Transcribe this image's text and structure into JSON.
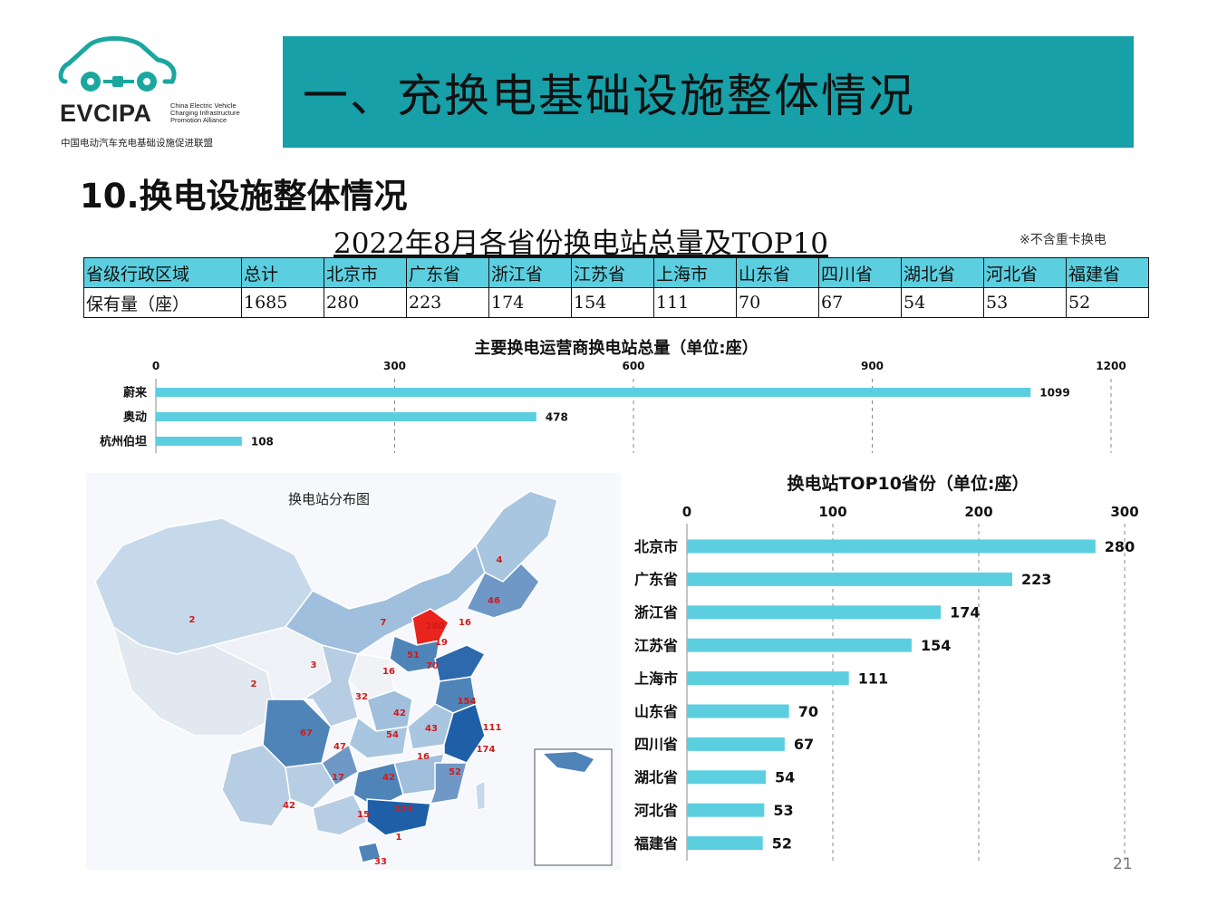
{
  "logo": {
    "name": "EVCIPA",
    "en_lines": [
      "China Electric Vehicle",
      "Charging Infrastructure",
      "Promotion Alliance"
    ],
    "cn": "中国电动汽车充电基础设施促进联盟"
  },
  "banner": {
    "title": "一、充换电基础设施整体情况"
  },
  "section_title": "10.换电设施整体情况",
  "table": {
    "title": "2022年8月各省份换电站总量及TOP10",
    "note": "※不含重卡换电",
    "header": [
      "省级行政区域",
      "总计",
      "北京市",
      "广东省",
      "浙江省",
      "江苏省",
      "上海市",
      "山东省",
      "四川省",
      "湖北省",
      "河北省",
      "福建省"
    ],
    "row": [
      "保有量（座）",
      "1685",
      "280",
      "223",
      "174",
      "154",
      "111",
      "70",
      "67",
      "54",
      "53",
      "52"
    ]
  },
  "colors": {
    "accent": "#17a0a8",
    "bar": "#5bcfe0",
    "table_header": "#5bcfe0",
    "map_dark": "#1e5fa8",
    "map_mid": "#4f84b8",
    "map_light": "#b8d0e4",
    "map_hot": "#e8241c"
  },
  "map": {
    "title": "换电站分布图",
    "labels": [
      "2",
      "4",
      "46",
      "7",
      "16",
      "280",
      "19",
      "3",
      "51",
      "70",
      "2",
      "32",
      "16",
      "154",
      "42",
      "111",
      "67",
      "47",
      "54",
      "43",
      "174",
      "16",
      "52",
      "17",
      "42",
      "42",
      "15",
      "223",
      "1",
      "33"
    ]
  },
  "chart_data": [
    {
      "type": "bar",
      "orientation": "horizontal",
      "title": "主要换电运营商换电站总量（单位:座）",
      "categories": [
        "蔚来",
        "奥动",
        "杭州伯坦"
      ],
      "values": [
        1099,
        478,
        108
      ],
      "xlim": [
        0,
        1200
      ],
      "ticks": [
        0,
        300,
        600,
        900,
        1200
      ],
      "grid": "dashed vertical",
      "legend": "none"
    },
    {
      "type": "bar",
      "orientation": "horizontal",
      "title": "换电站TOP10省份（单位:座）",
      "categories": [
        "北京市",
        "广东省",
        "浙江省",
        "江苏省",
        "上海市",
        "山东省",
        "四川省",
        "湖北省",
        "河北省",
        "福建省"
      ],
      "values": [
        280,
        223,
        174,
        154,
        111,
        70,
        67,
        54,
        53,
        52
      ],
      "xlim": [
        0,
        300
      ],
      "ticks": [
        0,
        100,
        200,
        300
      ],
      "grid": "dashed vertical",
      "legend": "none"
    }
  ],
  "page_number": "21"
}
